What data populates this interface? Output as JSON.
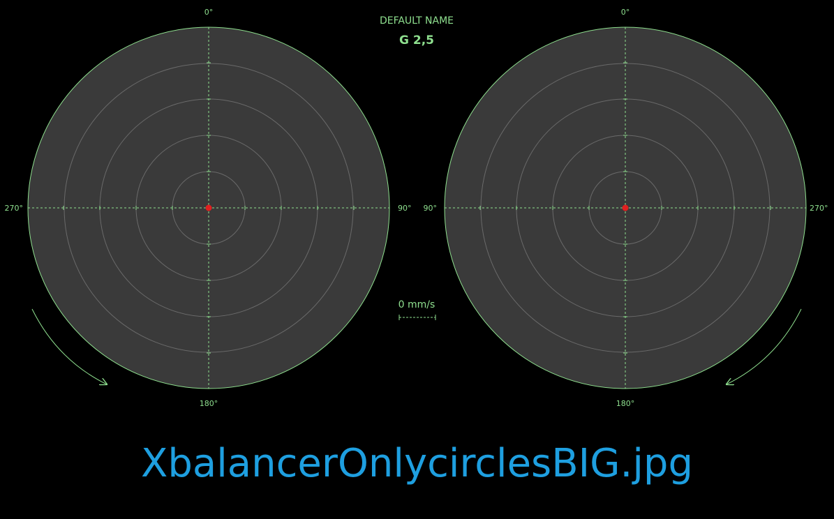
{
  "header": {
    "name": "DEFAULT NAME",
    "grade": "G 2,5"
  },
  "speed_scale": {
    "label": "0 mm/s"
  },
  "polar_left": {
    "label_top": "0°",
    "label_right": "90°",
    "label_bottom": "180°",
    "label_left": "270°",
    "rotation": "clockwise",
    "marker_value": 0
  },
  "polar_right": {
    "label_top": "0°",
    "label_right": "270°",
    "label_bottom": "180°",
    "label_left": "90°",
    "rotation": "counter-clockwise",
    "marker_value": 0
  },
  "caption": "XbalancerOnlycirclesBIG.jpg",
  "colors": {
    "background": "#000000",
    "plot_fill": "#3a3a3a",
    "outline": "#8fe08f",
    "ring": "#6a6a6a",
    "marker": "#e02020",
    "caption": "#1e9fe0"
  }
}
